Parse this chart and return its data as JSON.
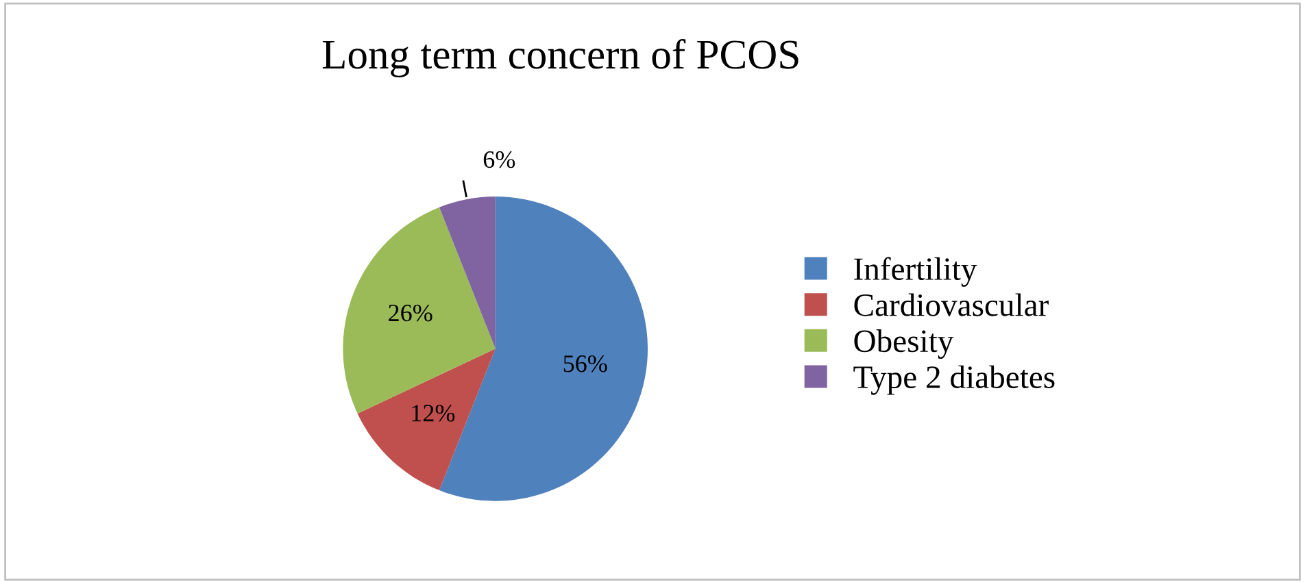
{
  "chart_data": {
    "type": "pie",
    "title": "Long term concern of PCOS",
    "categories": [
      "Infertility",
      "Cardiovascular",
      "Obesity",
      "Type 2 diabetes"
    ],
    "values": [
      56,
      12,
      26,
      6
    ],
    "colors": [
      "#4f81bd",
      "#c0504d",
      "#9bbb59",
      "#8064a2"
    ],
    "value_labels": [
      "56%",
      "12%",
      "26%",
      "6%"
    ],
    "legend": "right"
  }
}
